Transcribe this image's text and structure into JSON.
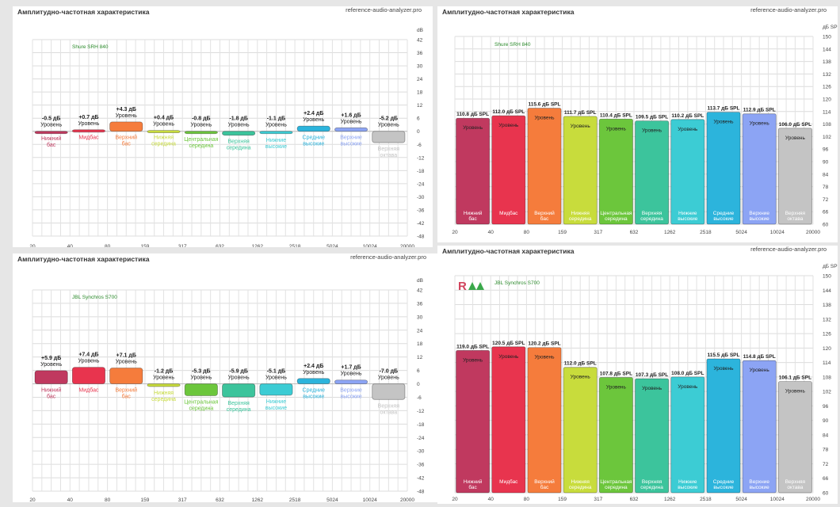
{
  "chart_data": [
    {
      "type": "bar",
      "title": "Амплитудно-частотная характеристика",
      "source": "reference-audio-analyzer.pro",
      "model": "Shure SRH 840",
      "unit": "dB",
      "ylim": [
        -48,
        42
      ],
      "yticks": [
        42,
        36,
        30,
        24,
        18,
        12,
        6,
        0,
        -6,
        -12,
        -18,
        -24,
        -30,
        -36,
        -42,
        -48
      ],
      "x_ticks": [
        "20",
        "40",
        "80",
        "159",
        "317",
        "632",
        "1262",
        "2518",
        "5024",
        "10024",
        "20000"
      ],
      "grid": true,
      "bars": [
        {
          "category": "Нижний бас",
          "value": -0.5,
          "value_label": "-0.5 дБ",
          "level_label": "Уровень",
          "color": "#c0395f"
        },
        {
          "category": "Мидбас",
          "value": 0.7,
          "value_label": "+0.7 дБ",
          "level_label": "Уровень",
          "color": "#e8344e"
        },
        {
          "category": "Верхний бас",
          "value": 4.3,
          "value_label": "+4.3 дБ",
          "level_label": "Уровень",
          "color": "#f57c3c"
        },
        {
          "category": "Нижняя середина",
          "value": 0.4,
          "value_label": "+0.4 дБ",
          "level_label": "Уровень",
          "color": "#c8dc3c"
        },
        {
          "category": "Центральная середина",
          "value": -0.8,
          "value_label": "-0.8 дБ",
          "level_label": "Уровень",
          "color": "#6cc63c"
        },
        {
          "category": "Верхняя середина",
          "value": -1.8,
          "value_label": "-1.8 дБ",
          "level_label": "Уровень",
          "color": "#3cc49c"
        },
        {
          "category": "Нижние высокие",
          "value": -1.1,
          "value_label": "-1.1 дБ",
          "level_label": "Уровень",
          "color": "#3cccd4"
        },
        {
          "category": "Средние высокие",
          "value": 2.4,
          "value_label": "+2.4 дБ",
          "level_label": "Уровень",
          "color": "#2cb4dc"
        },
        {
          "category": "Верхние высокие",
          "value": 1.6,
          "value_label": "+1.6 дБ",
          "level_label": "Уровень",
          "color": "#8ca4f4"
        },
        {
          "category": "Верхняя октава",
          "value": -5.2,
          "value_label": "-5.2 дБ",
          "level_label": "Уровень",
          "color": "#c4c4c4"
        }
      ]
    },
    {
      "type": "bar",
      "title": "Амплитудно-частотная характеристика",
      "source": "reference-audio-analyzer.pro",
      "model": "Shure SRH 840",
      "unit": "дБ SPL",
      "ylim": [
        60,
        150
      ],
      "yticks": [
        150,
        144,
        138,
        132,
        126,
        120,
        114,
        108,
        102,
        96,
        90,
        84,
        78,
        72,
        66,
        60
      ],
      "x_ticks": [
        "20",
        "40",
        "80",
        "159",
        "317",
        "632",
        "1262",
        "2518",
        "5024",
        "10024",
        "20000"
      ],
      "grid": true,
      "bars": [
        {
          "category": "Нижний бас",
          "value": 110.8,
          "value_label": "110.8 дБ SPL",
          "level_label": "Уровень",
          "color": "#c0395f"
        },
        {
          "category": "Мидбас",
          "value": 112.0,
          "value_label": "112.0 дБ SPL",
          "level_label": "Уровень",
          "color": "#e8344e"
        },
        {
          "category": "Верхний бас",
          "value": 115.6,
          "value_label": "115.6 дБ SPL",
          "level_label": "Уровень",
          "color": "#f57c3c"
        },
        {
          "category": "Нижняя середина",
          "value": 111.7,
          "value_label": "111.7 дБ SPL",
          "level_label": "Уровень",
          "color": "#c8dc3c"
        },
        {
          "category": "Центральная середина",
          "value": 110.4,
          "value_label": "110.4 дБ SPL",
          "level_label": "Уровень",
          "color": "#6cc63c"
        },
        {
          "category": "Верхняя середина",
          "value": 109.5,
          "value_label": "109.5 дБ SPL",
          "level_label": "Уровень",
          "color": "#3cc49c"
        },
        {
          "category": "Нижние высокие",
          "value": 110.2,
          "value_label": "110.2 дБ SPL",
          "level_label": "Уровень",
          "color": "#3cccd4"
        },
        {
          "category": "Средние высокие",
          "value": 113.7,
          "value_label": "113.7 дБ SPL",
          "level_label": "Уровень",
          "color": "#2cb4dc"
        },
        {
          "category": "Верхние высокие",
          "value": 112.9,
          "value_label": "112.9 дБ SPL",
          "level_label": "Уровень",
          "color": "#8ca4f4"
        },
        {
          "category": "Верхняя октава",
          "value": 106.0,
          "value_label": "106.0 дБ SPL",
          "level_label": "Уровень",
          "color": "#c4c4c4"
        }
      ]
    },
    {
      "type": "bar",
      "title": "Амплитудно-частотная характеристика",
      "source": "reference-audio-analyzer.pro",
      "model": "JBL Synchros S700",
      "unit": "dB",
      "ylim": [
        -48,
        42
      ],
      "yticks": [
        42,
        36,
        30,
        24,
        18,
        12,
        6,
        0,
        -6,
        -12,
        -18,
        -24,
        -30,
        -36,
        -42,
        -48
      ],
      "x_ticks": [
        "20",
        "40",
        "80",
        "159",
        "317",
        "632",
        "1262",
        "2518",
        "5024",
        "10024",
        "20000"
      ],
      "grid": true,
      "bars": [
        {
          "category": "Нижний бас",
          "value": 5.9,
          "value_label": "+5.9 дБ",
          "level_label": "Уровень",
          "color": "#c0395f"
        },
        {
          "category": "Мидбас",
          "value": 7.4,
          "value_label": "+7.4 дБ",
          "level_label": "Уровень",
          "color": "#e8344e"
        },
        {
          "category": "Верхний бас",
          "value": 7.1,
          "value_label": "+7.1 дБ",
          "level_label": "Уровень",
          "color": "#f57c3c"
        },
        {
          "category": "Нижняя середина",
          "value": -1.2,
          "value_label": "-1.2 дБ",
          "level_label": "Уровень",
          "color": "#c8dc3c"
        },
        {
          "category": "Центральная середина",
          "value": -5.3,
          "value_label": "-5.3 дБ",
          "level_label": "Уровень",
          "color": "#6cc63c"
        },
        {
          "category": "Верхняя середина",
          "value": -5.9,
          "value_label": "-5.9 дБ",
          "level_label": "Уровень",
          "color": "#3cc49c"
        },
        {
          "category": "Нижние высокие",
          "value": -5.1,
          "value_label": "-5.1 дБ",
          "level_label": "Уровень",
          "color": "#3cccd4"
        },
        {
          "category": "Средние высокие",
          "value": 2.4,
          "value_label": "+2.4 дБ",
          "level_label": "Уровень",
          "color": "#2cb4dc"
        },
        {
          "category": "Верхние высокие",
          "value": 1.7,
          "value_label": "+1.7 дБ",
          "level_label": "Уровень",
          "color": "#8ca4f4"
        },
        {
          "category": "Верхняя октава",
          "value": -7.0,
          "value_label": "-7.0 дБ",
          "level_label": "Уровень",
          "color": "#c4c4c4"
        }
      ]
    },
    {
      "type": "bar",
      "title": "Амплитудно-частотная характеристика",
      "source": "reference-audio-analyzer.pro",
      "model": "JBL Synchros S700",
      "unit": "дБ SPL",
      "ylim": [
        60,
        150
      ],
      "yticks": [
        150,
        144,
        138,
        132,
        126,
        120,
        114,
        108,
        102,
        96,
        90,
        84,
        78,
        72,
        66,
        60
      ],
      "x_ticks": [
        "20",
        "40",
        "80",
        "159",
        "317",
        "632",
        "1262",
        "2518",
        "5024",
        "10024",
        "20000"
      ],
      "grid": true,
      "logo_text": "RAA",
      "bars": [
        {
          "category": "Нижний бас",
          "value": 119.0,
          "value_label": "119.0 дБ SPL",
          "level_label": "Уровень",
          "color": "#c0395f"
        },
        {
          "category": "Мидбас",
          "value": 120.5,
          "value_label": "120.5 дБ SPL",
          "level_label": "Уровень",
          "color": "#e8344e"
        },
        {
          "category": "Верхний бас",
          "value": 120.2,
          "value_label": "120.2 дБ SPL",
          "level_label": "Уровень",
          "color": "#f57c3c"
        },
        {
          "category": "Нижняя середина",
          "value": 112.0,
          "value_label": "112.0 дБ SPL",
          "level_label": "Уровень",
          "color": "#c8dc3c"
        },
        {
          "category": "Центральная середина",
          "value": 107.8,
          "value_label": "107.8 дБ SPL",
          "level_label": "Уровень",
          "color": "#6cc63c"
        },
        {
          "category": "Верхняя середина",
          "value": 107.3,
          "value_label": "107.3 дБ SPL",
          "level_label": "Уровень",
          "color": "#3cc49c"
        },
        {
          "category": "Нижние высокие",
          "value": 108.0,
          "value_label": "108.0 дБ SPL",
          "level_label": "Уровень",
          "color": "#3cccd4"
        },
        {
          "category": "Средние высокие",
          "value": 115.5,
          "value_label": "115.5 дБ SPL",
          "level_label": "Уровень",
          "color": "#2cb4dc"
        },
        {
          "category": "Верхние высокие",
          "value": 114.8,
          "value_label": "114.8 дБ SPL",
          "level_label": "Уровень",
          "color": "#8ca4f4"
        },
        {
          "category": "Верхняя октава",
          "value": 106.1,
          "value_label": "106.1 дБ SPL",
          "level_label": "Уровень",
          "color": "#c4c4c4"
        }
      ]
    }
  ]
}
